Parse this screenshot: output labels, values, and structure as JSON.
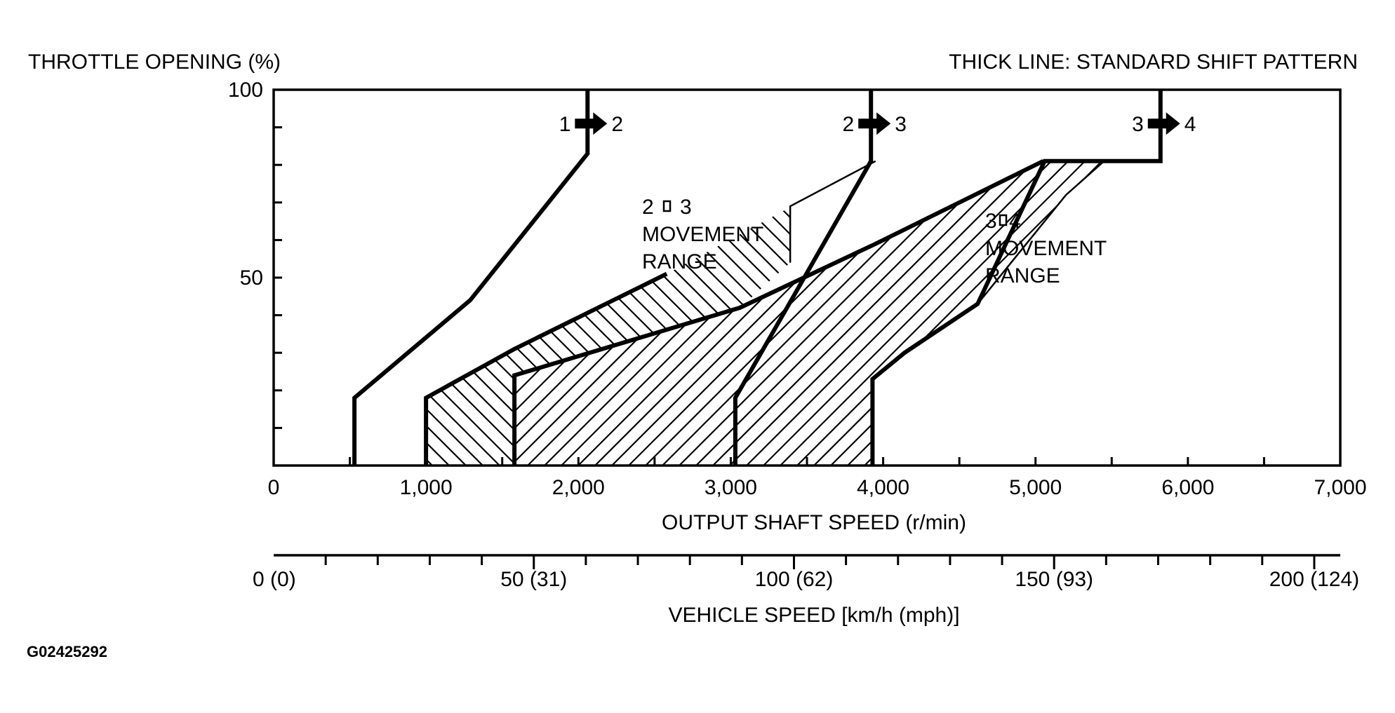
{
  "chart_data": {
    "type": "line",
    "ylabel": "THROTTLE OPENING (%)",
    "legend_note": "THICK LINE: STANDARD SHIFT PATTERN",
    "xlabel": "OUTPUT SHAFT SPEED (r/min)",
    "xlim": [
      0,
      7000
    ],
    "ylim": [
      0,
      100
    ],
    "x_ticks": [
      {
        "value": 0,
        "label": "0"
      },
      {
        "value": 1000,
        "label": "1,000"
      },
      {
        "value": 2000,
        "label": "2,000"
      },
      {
        "value": 3000,
        "label": "3,000"
      },
      {
        "value": 4000,
        "label": "4,000"
      },
      {
        "value": 5000,
        "label": "5,000"
      },
      {
        "value": 6000,
        "label": "6,000"
      },
      {
        "value": 7000,
        "label": "7,000"
      }
    ],
    "y_ticks": [
      {
        "value": 50,
        "label": "50"
      },
      {
        "value": 100,
        "label": "100"
      }
    ],
    "secondary_axis": {
      "label": "VEHICLE SPEED [km/h (mph)]",
      "range_kmh": [
        0,
        205
      ],
      "ticks": [
        {
          "value": 0,
          "label": "0 (0)"
        },
        {
          "value": 50,
          "label": "50 (31)"
        },
        {
          "value": 100,
          "label": "100 (62)"
        },
        {
          "value": 150,
          "label": "150 (93)"
        },
        {
          "value": 200,
          "label": "200 (124)"
        }
      ]
    },
    "shift_lines": [
      {
        "label_from": "1",
        "label_to": "2",
        "points": [
          [
            530,
            0
          ],
          [
            530,
            18
          ],
          [
            1290,
            44
          ],
          [
            2060,
            83
          ],
          [
            2060,
            100
          ]
        ]
      },
      {
        "label_from": "2",
        "label_to": "3",
        "points": [
          [
            3030,
            0
          ],
          [
            3030,
            18
          ],
          [
            3920,
            81
          ],
          [
            3920,
            100
          ]
        ]
      },
      {
        "label_from": "3",
        "label_to": "4",
        "points": [
          [
            3930,
            0
          ],
          [
            3930,
            23
          ],
          [
            4140,
            30
          ],
          [
            4620,
            43
          ],
          [
            5060,
            81
          ],
          [
            5820,
            81
          ],
          [
            5820,
            100
          ]
        ]
      }
    ],
    "movement_ranges": [
      {
        "label_line1": "2",
        "label_line2": "3",
        "label_line3": "MOVEMENT",
        "label_line4": "RANGE",
        "points": [
          [
            1000,
            0
          ],
          [
            1000,
            18
          ],
          [
            1580,
            31
          ],
          [
            2580,
            51
          ],
          [
            3950,
            81
          ],
          [
            3390,
            69
          ],
          [
            3390,
            54
          ],
          [
            3060,
            42
          ],
          [
            1580,
            24
          ],
          [
            1580,
            0
          ]
        ]
      },
      {
        "label_line1": "3",
        "label_line2": "4",
        "label_line3": "MOVEMENT",
        "label_line4": "RANGE",
        "points": [
          [
            1580,
            0
          ],
          [
            1580,
            24
          ],
          [
            3060,
            42
          ],
          [
            3950,
            59
          ],
          [
            5050,
            81
          ],
          [
            5450,
            81
          ],
          [
            5200,
            72
          ],
          [
            4620,
            43
          ],
          [
            4140,
            30
          ],
          [
            3930,
            23
          ],
          [
            3930,
            0
          ]
        ]
      }
    ],
    "grid": false
  },
  "figure_id": "G02425292",
  "arrow_icon": "right-arrow-icon"
}
